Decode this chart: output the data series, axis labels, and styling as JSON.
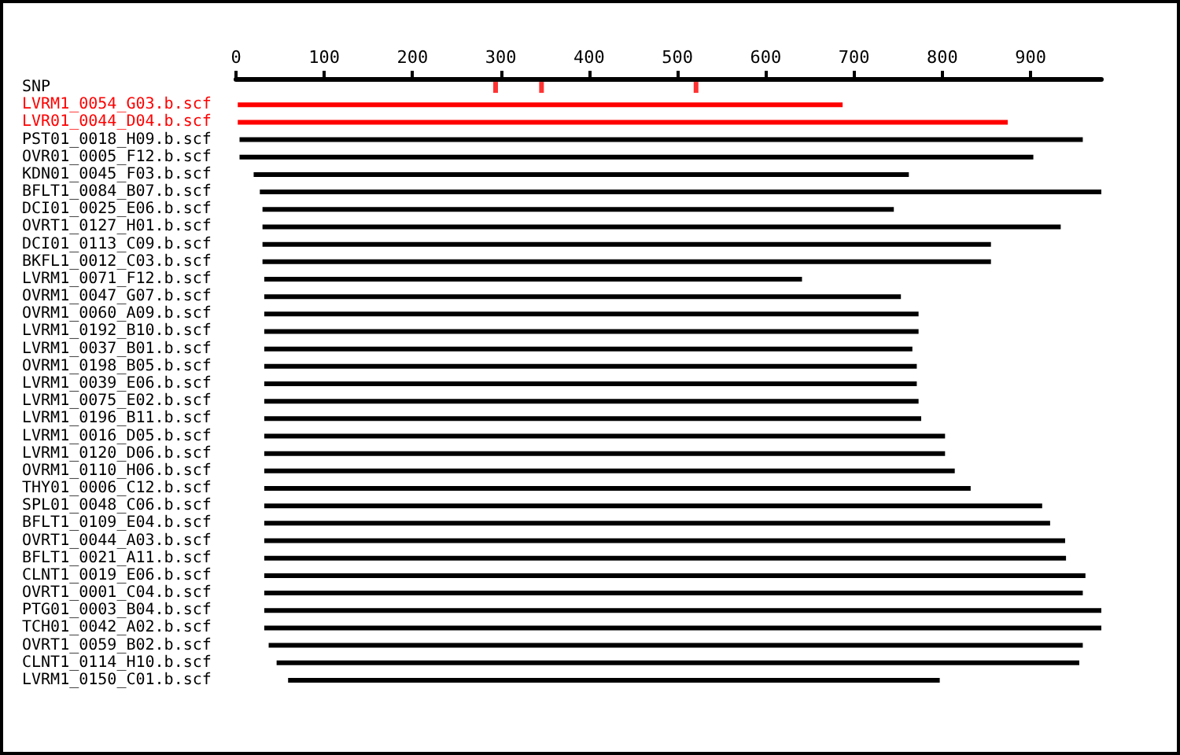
{
  "chart_data": {
    "type": "bar",
    "orientation": "horizontal",
    "categories": [
      "SNP",
      "LVRM1_0054_G03.b.scf",
      "LVR01_0044_D04.b.scf",
      "PST01_0018_H09.b.scf",
      "OVR01_0005_F12.b.scf",
      "KDN01_0045_F03.b.scf",
      "BFLT1_0084_B07.b.scf",
      "DCI01_0025_E06.b.scf",
      "OVRT1_0127_H01.b.scf",
      "DCI01_0113_C09.b.scf",
      "BKFL1_0012_C03.b.scf",
      "LVRM1_0071_F12.b.scf",
      "OVRM1_0047_G07.b.scf",
      "OVRM1_0060_A09.b.scf",
      "LVRM1_0192_B10.b.scf",
      "LVRM1_0037_B01.b.scf",
      "OVRM1_0198_B05.b.scf",
      "LVRM1_0039_E06.b.scf",
      "LVRM1_0075_E02.b.scf",
      "LVRM1_0196_B11.b.scf",
      "LVRM1_0016_D05.b.scf",
      "LVRM1_0120_D06.b.scf",
      "OVRM1_0110_H06.b.scf",
      "THY01_0006_C12.b.scf",
      "SPL01_0048_C06.b.scf",
      "BFLT1_0109_E04.b.scf",
      "OVRT1_0044_A03.b.scf",
      "BFLT1_0021_A11.b.scf",
      "CLNT1_0019_E06.b.scf",
      "OVRT1_0001_C04.b.scf",
      "PTG01_0003_B04.b.scf",
      "TCH01_0042_A02.b.scf",
      "OVRT1_0059_B02.b.scf",
      "CLNT1_0114_H10.b.scf",
      "LVRM1_0150_C01.b.scf"
    ],
    "series": [
      {
        "base": [
          null,
          2,
          2,
          4,
          4,
          20,
          27,
          30,
          30,
          30,
          30,
          32,
          32,
          32,
          32,
          32,
          32,
          32,
          32,
          32,
          32,
          32,
          32,
          32,
          32,
          32,
          32,
          32,
          32,
          32,
          32,
          32,
          37,
          46,
          59
        ],
        "values": [
          null,
          685,
          872,
          955,
          899,
          742,
          953,
          715,
          904,
          825,
          825,
          609,
          721,
          741,
          741,
          734,
          739,
          739,
          741,
          744,
          771,
          771,
          782,
          800,
          881,
          890,
          907,
          908,
          930,
          927,
          948,
          948,
          922,
          909,
          738
        ],
        "colors": [
          null,
          "#ff0000",
          "#ff0000",
          "#000000",
          "#000000",
          "#000000",
          "#000000",
          "#000000",
          "#000000",
          "#000000",
          "#000000",
          "#000000",
          "#000000",
          "#000000",
          "#000000",
          "#000000",
          "#000000",
          "#000000",
          "#000000",
          "#000000",
          "#000000",
          "#000000",
          "#000000",
          "#000000",
          "#000000",
          "#000000",
          "#000000",
          "#000000",
          "#000000",
          "#000000",
          "#000000",
          "#000000",
          "#000000",
          "#000000",
          "#000000"
        ]
      },
      {
        "type": "scatter",
        "color": "#ff0000",
        "marker": "square",
        "x": [
          "SNP",
          "SNP",
          "SNP"
        ],
        "values": [
          294,
          346,
          521
        ]
      }
    ],
    "xlim": [
      0,
      980
    ],
    "xticks": [
      0,
      100,
      200,
      300,
      400,
      500,
      600,
      700,
      800,
      900
    ],
    "grid": false
  }
}
